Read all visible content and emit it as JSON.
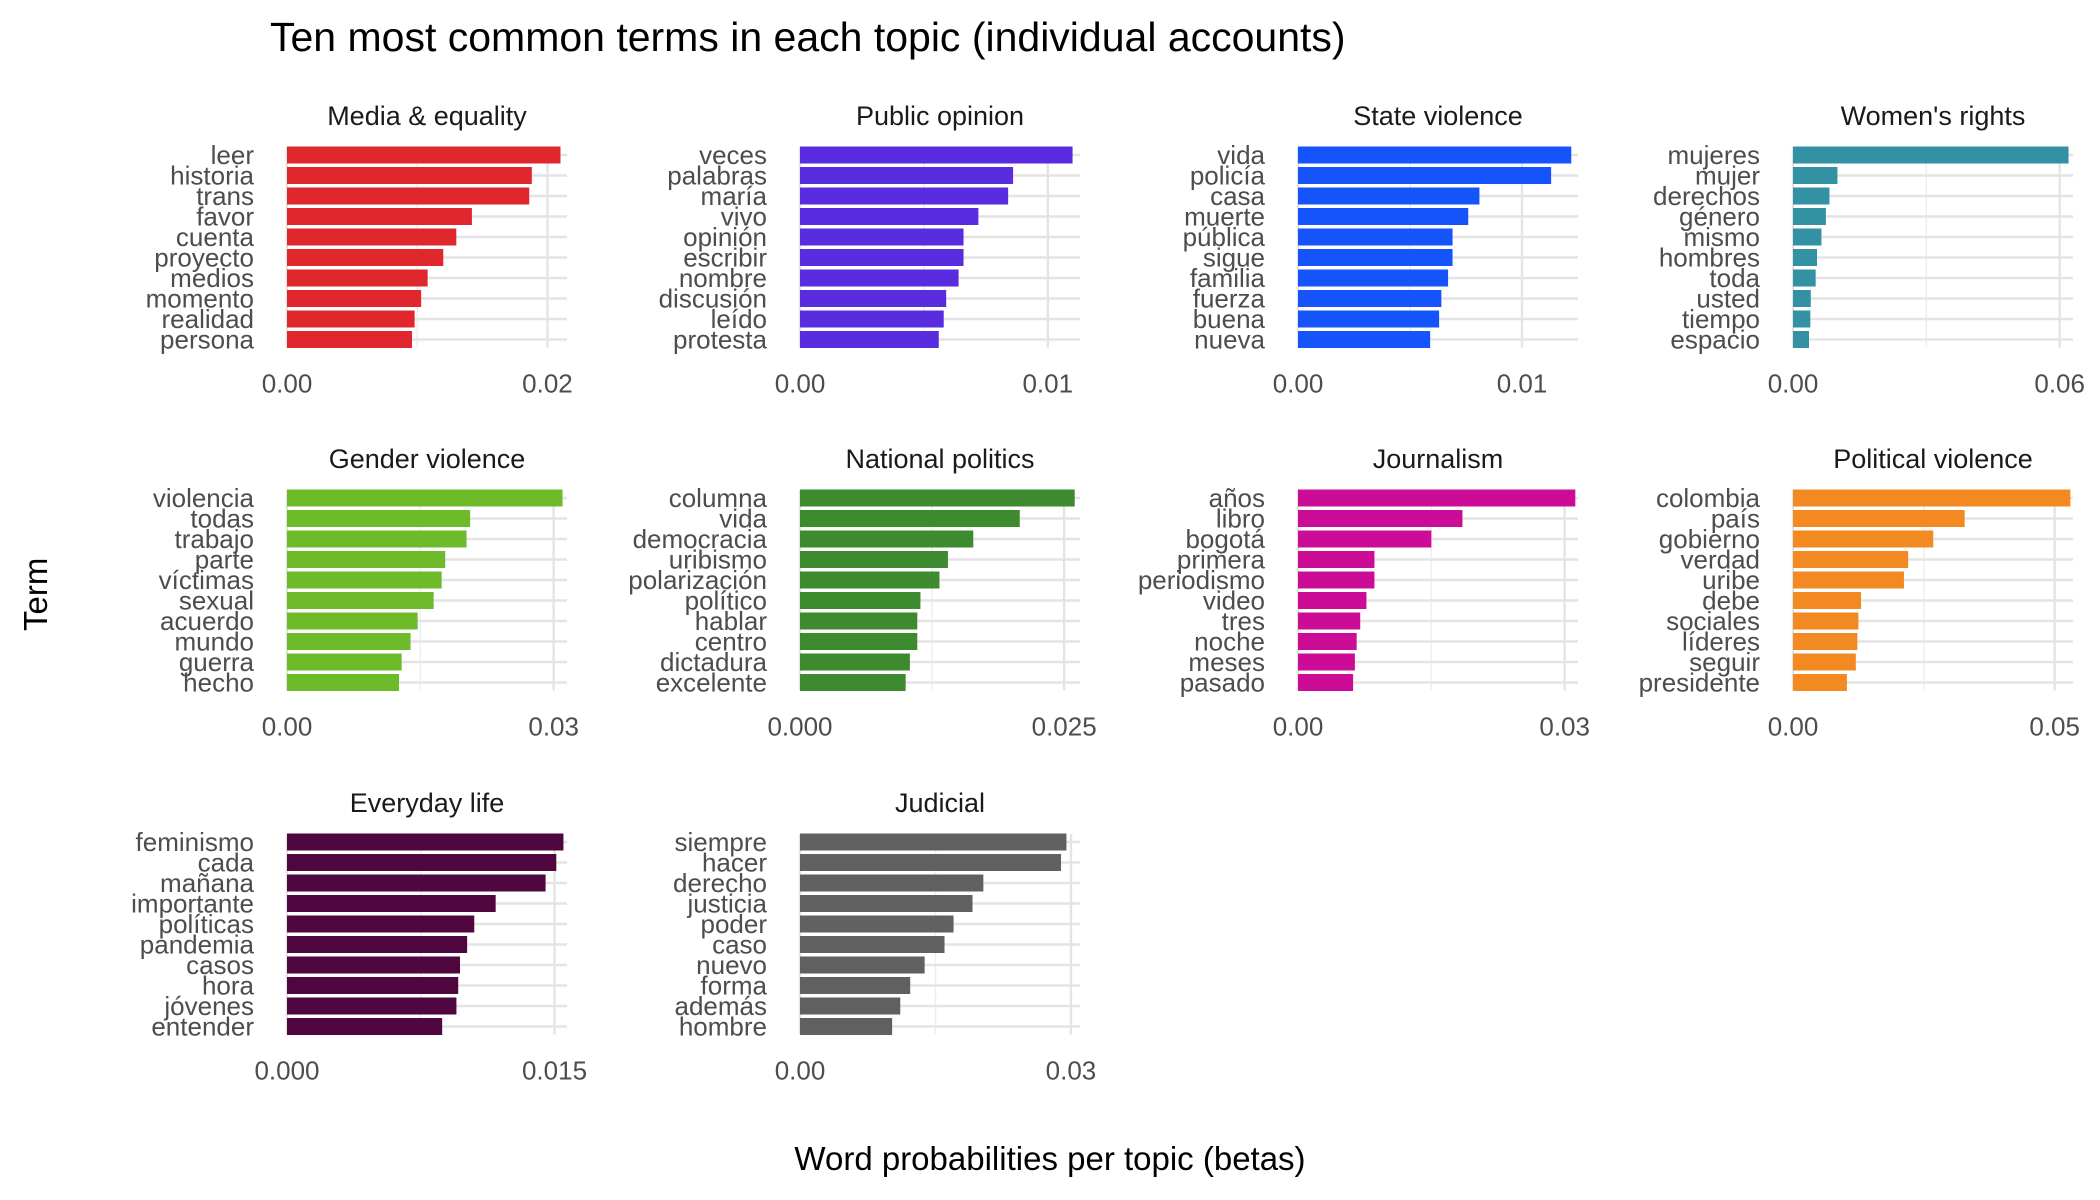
{
  "chart_data": {
    "type": "bar",
    "orientation": "horizontal",
    "layout": "facets (3 rows x 4 columns, free scales)",
    "title": "Ten most common terms in each topic (individual accounts)",
    "xlabel": "Word probabilities per topic (betas)",
    "ylabel": "Term",
    "grid": true,
    "legend": "none",
    "panels": [
      {
        "name": "Media & equality",
        "color": "#E0272E",
        "xlim": [
          0,
          0.0215
        ],
        "ticks": [
          {
            "value": 0,
            "label": "0.00"
          },
          {
            "value": 0.02,
            "label": "0.02"
          }
        ],
        "categories": [
          "leer",
          "historia",
          "trans",
          "favor",
          "cuenta",
          "proyecto",
          "medios",
          "momento",
          "realidad",
          "persona"
        ],
        "values": [
          0.021,
          0.0188,
          0.0186,
          0.0142,
          0.013,
          0.012,
          0.0108,
          0.0103,
          0.0098,
          0.0096
        ]
      },
      {
        "name": "Public opinion",
        "color": "#5A2CE0",
        "xlim": [
          0,
          0.0113
        ],
        "ticks": [
          {
            "value": 0,
            "label": "0.00"
          },
          {
            "value": 0.01,
            "label": "0.01"
          }
        ],
        "categories": [
          "veces",
          "palabras",
          "maría",
          "vivo",
          "opinión",
          "escribir",
          "nombre",
          "discusión",
          "leído",
          "protesta"
        ],
        "values": [
          0.011,
          0.0086,
          0.0084,
          0.0072,
          0.0066,
          0.0066,
          0.0064,
          0.0059,
          0.0058,
          0.0056
        ]
      },
      {
        "name": "State violence",
        "color": "#1554FB",
        "xlim": [
          0,
          0.0125
        ],
        "ticks": [
          {
            "value": 0,
            "label": "0.00"
          },
          {
            "value": 0.01,
            "label": "0.01"
          }
        ],
        "categories": [
          "vida",
          "policía",
          "casa",
          "muerte",
          "pública",
          "sigue",
          "familia",
          "fuerza",
          "buena",
          "nueva"
        ],
        "values": [
          0.0122,
          0.0113,
          0.0081,
          0.0076,
          0.0069,
          0.0069,
          0.0067,
          0.0064,
          0.0063,
          0.0059
        ]
      },
      {
        "name": "Women's rights",
        "color": "#3391A4",
        "xlim": [
          0,
          0.063
        ],
        "ticks": [
          {
            "value": 0,
            "label": "0.00"
          },
          {
            "value": 0.06,
            "label": "0.06"
          }
        ],
        "categories": [
          "mujeres",
          "mujer",
          "derechos",
          "género",
          "mismo",
          "hombres",
          "toda",
          "usted",
          "tiempo",
          "espacio"
        ],
        "values": [
          0.062,
          0.01,
          0.0082,
          0.0074,
          0.0064,
          0.0054,
          0.0051,
          0.004,
          0.0039,
          0.0036
        ]
      },
      {
        "name": "Gender violence",
        "color": "#6DBA2B",
        "xlim": [
          0,
          0.0315
        ],
        "ticks": [
          {
            "value": 0,
            "label": "0.00"
          },
          {
            "value": 0.03,
            "label": "0.03"
          }
        ],
        "categories": [
          "violencia",
          "todas",
          "trabajo",
          "parte",
          "víctimas",
          "sexual",
          "acuerdo",
          "mundo",
          "guerra",
          "hecho"
        ],
        "values": [
          0.031,
          0.0206,
          0.0202,
          0.0178,
          0.0174,
          0.0165,
          0.0147,
          0.0139,
          0.0129,
          0.0126
        ]
      },
      {
        "name": "National politics",
        "color": "#3E8A2E",
        "xlim": [
          0,
          0.0265
        ],
        "ticks": [
          {
            "value": 0,
            "label": "0.000"
          },
          {
            "value": 0.025,
            "label": "0.025"
          }
        ],
        "categories": [
          "columna",
          "vida",
          "democracia",
          "uribismo",
          "polarización",
          "político",
          "hablar",
          "centro",
          "dictadura",
          "excelente"
        ],
        "values": [
          0.026,
          0.0208,
          0.0164,
          0.014,
          0.0132,
          0.0114,
          0.0111,
          0.0111,
          0.0104,
          0.01
        ]
      },
      {
        "name": "Journalism",
        "color": "#CC0C97",
        "xlim": [
          0,
          0.0315
        ],
        "ticks": [
          {
            "value": 0,
            "label": "0.00"
          },
          {
            "value": 0.03,
            "label": "0.03"
          }
        ],
        "categories": [
          "años",
          "libro",
          "bogotá",
          "primera",
          "periodismo",
          "video",
          "tres",
          "noche",
          "meses",
          "pasado"
        ],
        "values": [
          0.0312,
          0.0185,
          0.015,
          0.0086,
          0.0086,
          0.0077,
          0.007,
          0.0066,
          0.0064,
          0.0062
        ]
      },
      {
        "name": "Political violence",
        "color": "#F38A21",
        "xlim": [
          0,
          0.0535
        ],
        "ticks": [
          {
            "value": 0,
            "label": "0.00"
          },
          {
            "value": 0.05,
            "label": "0.05"
          }
        ],
        "categories": [
          "colombia",
          "país",
          "gobierno",
          "verdad",
          "uribe",
          "debe",
          "sociales",
          "líderes",
          "seguir",
          "presidente"
        ],
        "values": [
          0.053,
          0.0328,
          0.0268,
          0.022,
          0.0212,
          0.013,
          0.0125,
          0.0123,
          0.012,
          0.0103
        ]
      },
      {
        "name": "Everyday life",
        "color": "#500740",
        "xlim": [
          0,
          0.0157
        ],
        "ticks": [
          {
            "value": 0,
            "label": "0.000"
          },
          {
            "value": 0.015,
            "label": "0.015"
          }
        ],
        "categories": [
          "feminismo",
          "cada",
          "mañana",
          "importante",
          "políticas",
          "pandemia",
          "casos",
          "hora",
          "jóvenes",
          "entender"
        ],
        "values": [
          0.0155,
          0.0151,
          0.0145,
          0.0117,
          0.0105,
          0.0101,
          0.0097,
          0.0096,
          0.0095,
          0.0087
        ]
      },
      {
        "name": "Judicial",
        "color": "#606060",
        "xlim": [
          0,
          0.031
        ],
        "ticks": [
          {
            "value": 0,
            "label": "0.00"
          },
          {
            "value": 0.03,
            "label": "0.03"
          }
        ],
        "categories": [
          "siempre",
          "hacer",
          "derecho",
          "justicia",
          "poder",
          "caso",
          "nuevo",
          "forma",
          "además",
          "hombre"
        ],
        "values": [
          0.0295,
          0.0289,
          0.0203,
          0.0191,
          0.017,
          0.016,
          0.0138,
          0.0122,
          0.0111,
          0.0102
        ]
      }
    ]
  }
}
